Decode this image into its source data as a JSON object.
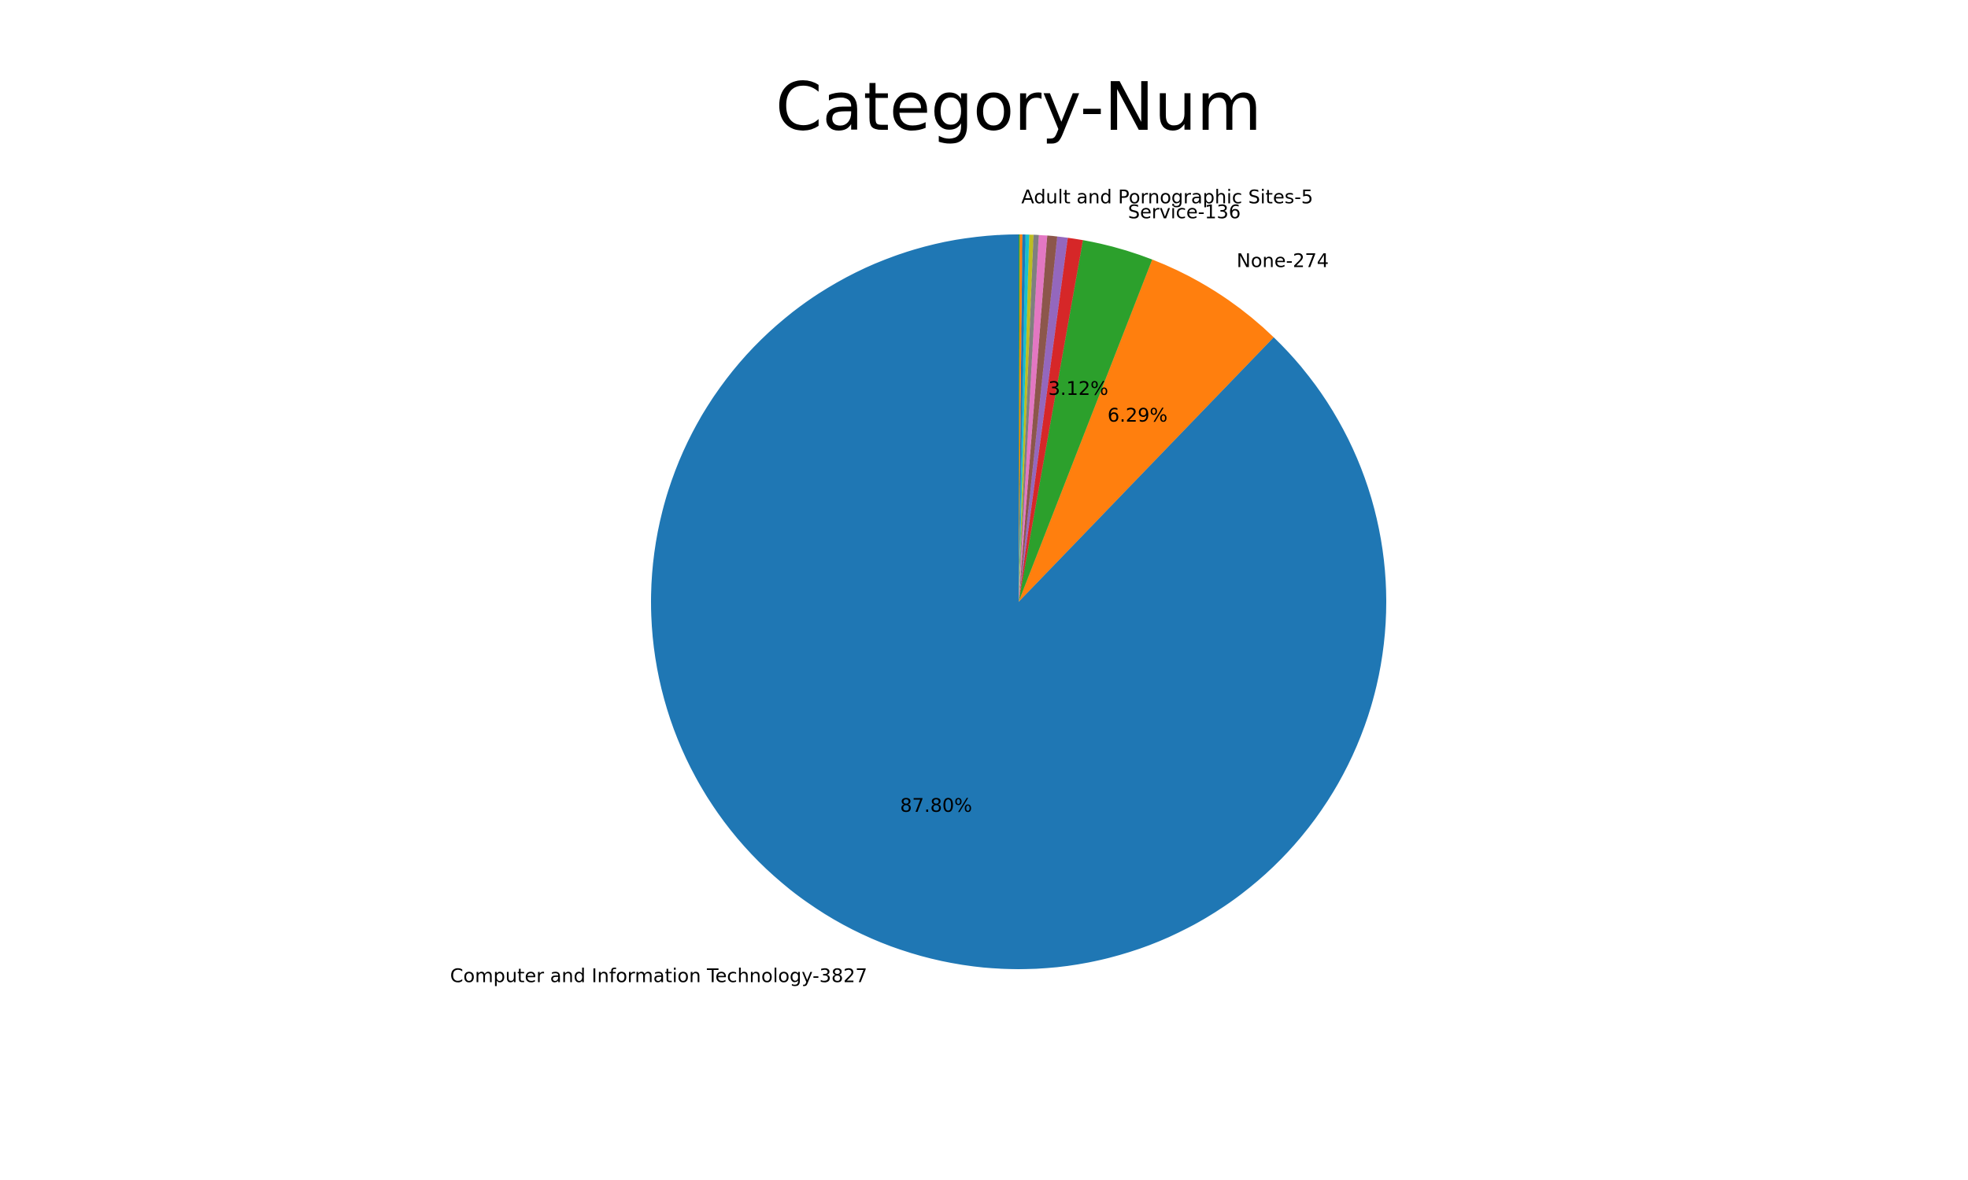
{
  "chart_data": {
    "type": "pie",
    "title": "Category-Num",
    "start_angle_deg": 90,
    "direction": "counterclockwise",
    "slices": [
      {
        "label": "Computer and Information Technology-3827",
        "value": 3827,
        "pct": "87.80%",
        "color": "#1f77b4"
      },
      {
        "label": "None-274",
        "value": 274,
        "pct": "6.29%",
        "color": "#ff7f0e"
      },
      {
        "label": "Service-136",
        "value": 136,
        "pct": "3.12%",
        "color": "#2ca02c"
      },
      {
        "label": "",
        "value": 29,
        "pct": "",
        "color": "#d62728"
      },
      {
        "label": "",
        "value": 20,
        "pct": "",
        "color": "#9467bd"
      },
      {
        "label": "",
        "value": 19,
        "pct": "",
        "color": "#8c564b"
      },
      {
        "label": "",
        "value": 16,
        "pct": "",
        "color": "#e377c2"
      },
      {
        "label": "",
        "value": 10,
        "pct": "",
        "color": "#7f7f7f"
      },
      {
        "label": "",
        "value": 8,
        "pct": "",
        "color": "#bcbd22"
      },
      {
        "label": "",
        "value": 7,
        "pct": "",
        "color": "#17becf"
      },
      {
        "label": "",
        "value": 6,
        "pct": "",
        "color": "#1f77b4"
      },
      {
        "label": "Adult and Pornographic Sites-5",
        "value": 5,
        "pct": "",
        "color": "#ff7f0e"
      },
      {
        "label": "",
        "value": 2,
        "pct": "",
        "color": "#2ca02c"
      }
    ]
  }
}
